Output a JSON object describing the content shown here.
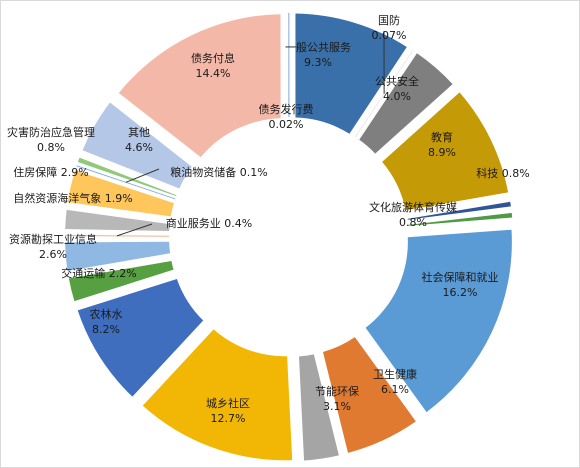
{
  "chart_data": {
    "type": "pie",
    "style": "exploded-donut",
    "start_angle_deg": 0,
    "direction": "clockwise",
    "legend": "none",
    "slices": [
      {
        "name": "一般公共服务",
        "value": 9.3,
        "label": "9.3%",
        "color": "#3a70aa"
      },
      {
        "name": "国防",
        "value": 0.07,
        "label": "0.07%",
        "color": "#e8e8e8"
      },
      {
        "name": "公共安全",
        "value": 4.0,
        "label": "4.0%",
        "color": "#7f7f7f"
      },
      {
        "name": "教育",
        "value": 8.9,
        "label": "8.9%",
        "color": "#c59a07"
      },
      {
        "name": "科技",
        "value": 0.8,
        "label": "0.8%",
        "color": "#2f5597"
      },
      {
        "name": "文化旅游体育传媒",
        "value": 0.8,
        "label": "0.8%",
        "color": "#4f9b45"
      },
      {
        "name": "社会保障和就业",
        "value": 16.2,
        "label": "16.2%",
        "color": "#5b9bd5"
      },
      {
        "name": "卫生健康",
        "value": 6.1,
        "label": "6.1%",
        "color": "#e07a31"
      },
      {
        "name": "节能环保",
        "value": 3.1,
        "label": "3.1%",
        "color": "#a5a5a5"
      },
      {
        "name": "城乡社区",
        "value": 12.7,
        "label": "12.7%",
        "color": "#f2b705"
      },
      {
        "name": "农林水",
        "value": 8.2,
        "label": "8.2%",
        "color": "#3f6ebf"
      },
      {
        "name": "交通运输",
        "value": 2.2,
        "label": "2.2%",
        "color": "#57a041"
      },
      {
        "name": "资源勘探工业信息",
        "value": 2.6,
        "label": "2.6%",
        "color": "#8fb8e3"
      },
      {
        "name": "商业服务业",
        "value": 0.4,
        "label": "0.4%",
        "color": "#f0a67a"
      },
      {
        "name": "自然资源海洋气象",
        "value": 1.9,
        "label": "1.9%",
        "color": "#b8b8b8"
      },
      {
        "name": "住房保障",
        "value": 2.9,
        "label": "2.9%",
        "color": "#ffc65c"
      },
      {
        "name": "粮油物资储备",
        "value": 0.1,
        "label": "0.1%",
        "color": "#7da6d9"
      },
      {
        "name": "灾害防治应急管理",
        "value": 0.8,
        "label": "0.8%",
        "color": "#8fc97a"
      },
      {
        "name": "其他",
        "value": 4.6,
        "label": "4.6%",
        "color": "#b4c7e7"
      },
      {
        "name": "债务付息",
        "value": 14.4,
        "label": "14.4%",
        "color": "#f4b8a8"
      },
      {
        "name": "债务发行费",
        "value": 0.02,
        "label": "0.02%",
        "color": "#6b9ad1"
      }
    ]
  }
}
